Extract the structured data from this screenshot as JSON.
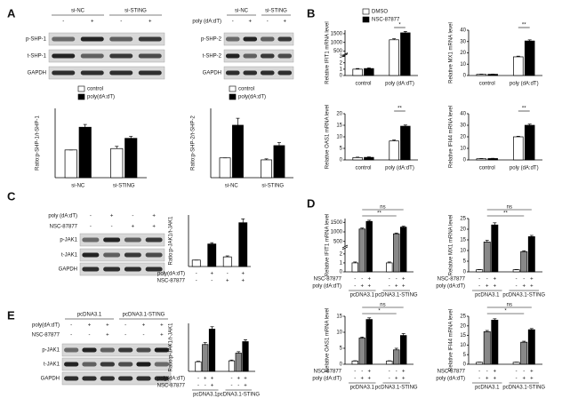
{
  "panels": [
    "A",
    "B",
    "C",
    "D",
    "E"
  ],
  "blots": [
    {
      "groups": [
        "si-NC",
        "si-STING"
      ],
      "conditions": [
        {
          "marks": [
            "-",
            "+",
            "-",
            "+"
          ]
        }
      ],
      "rows": [
        "p-SHP-1",
        "t-SHP-1",
        "GAPDH"
      ]
    },
    {
      "groups": [
        "si-NC",
        "si-STING"
      ],
      "conditions": [
        {
          "label": "poly (dA:dT)",
          "marks": [
            "-",
            "+",
            "-",
            "+"
          ]
        }
      ],
      "rows": [
        "p-SHP-2",
        "t-SHP-2",
        "GAPDH"
      ]
    },
    {
      "conditions": [
        {
          "label": "poly (dA:dT)",
          "marks": [
            "-",
            "+",
            "-",
            "+"
          ]
        },
        {
          "label": "NSC-87877",
          "marks": [
            "-",
            "-",
            "+",
            "+"
          ]
        }
      ],
      "rows": [
        "p-JAK1",
        "t-JAK1",
        "GAPDH"
      ]
    },
    {
      "groups": [
        "pcDNA3.1",
        "pcDNA3.1-STING"
      ],
      "conditions": [
        {
          "label": "poly(dA:dT)",
          "marks": [
            "-",
            "+",
            "+",
            "-",
            "+",
            "+"
          ]
        },
        {
          "label": "NSC-87877",
          "marks": [
            "-",
            "-",
            "+",
            "-",
            "-",
            "+"
          ]
        }
      ],
      "rows": [
        "p-JAK1",
        "t-JAK1",
        "GAPDH"
      ]
    }
  ],
  "chart_data": [
    {
      "type": "bar",
      "ylabel": "Ratio:p-SHP-1/t-SHP-1",
      "categories": [
        "si-NC",
        "si-STING"
      ],
      "ylim": [
        0,
        2.5
      ],
      "series": [
        {
          "name": "control",
          "color": "#ffffff",
          "values": [
            1.0,
            1.05
          ],
          "errors": [
            0,
            0.08
          ]
        },
        {
          "name": "poly(dA:dT)",
          "color": "#000000",
          "values": [
            1.82,
            1.42
          ],
          "errors": [
            0.1,
            0.07
          ]
        }
      ]
    },
    {
      "type": "bar",
      "ylabel": "Ratio:p-SHP-2/t-SHP-2",
      "categories": [
        "si-NC",
        "si-STING"
      ],
      "ylim": [
        0,
        3.5
      ],
      "series": [
        {
          "name": "control",
          "color": "#ffffff",
          "values": [
            1.0,
            0.9
          ],
          "errors": [
            0,
            0.05
          ]
        },
        {
          "name": "poly(dA:dT)",
          "color": "#000000",
          "values": [
            2.65,
            1.62
          ],
          "errors": [
            0.35,
            0.15
          ]
        }
      ]
    },
    {
      "type": "bar",
      "ylabel": "Relative IFIT1 mRNA level",
      "categories": [
        "control",
        "poly (dA:dT)"
      ],
      "ylim": [
        0,
        1700
      ],
      "ybreak": [
        3,
        400
      ],
      "yticks": [
        0,
        1,
        2,
        3,
        500,
        1000,
        1500
      ],
      "annotations": [
        "*"
      ],
      "series": [
        {
          "name": "DMSO",
          "color": "#ffffff",
          "values": [
            1,
            1150
          ],
          "errors": [
            0.1,
            60
          ]
        },
        {
          "name": "NSC-87877",
          "color": "#000000",
          "values": [
            1.1,
            1550
          ],
          "errors": [
            0.1,
            80
          ]
        }
      ]
    },
    {
      "type": "bar",
      "ylabel": "Relative MX1 mRNA level",
      "categories": [
        "control",
        "poly (dA:dT)"
      ],
      "ylim": [
        0,
        40
      ],
      "yticks": [
        0,
        10,
        20,
        30,
        40
      ],
      "annotations": [
        "**"
      ],
      "series": [
        {
          "color": "#ffffff",
          "values": [
            1,
            16.5
          ],
          "errors": [
            0.2,
            0.6
          ]
        },
        {
          "color": "#000000",
          "values": [
            1.1,
            30.5
          ],
          "errors": [
            0.2,
            1
          ]
        }
      ]
    },
    {
      "type": "bar",
      "ylabel": "Relative OAS1 mRNA level",
      "categories": [
        "control",
        "poly (dA:dT)"
      ],
      "ylim": [
        0,
        20
      ],
      "yticks": [
        0,
        5,
        10,
        15,
        20
      ],
      "annotations": [
        "**"
      ],
      "series": [
        {
          "color": "#ffffff",
          "values": [
            1,
            8.2
          ],
          "errors": [
            0.2,
            0.4
          ]
        },
        {
          "color": "#000000",
          "values": [
            1.1,
            14.6
          ],
          "errors": [
            0.2,
            0.5
          ]
        }
      ]
    },
    {
      "type": "bar",
      "ylabel": "Relative IFI44 mRNA level",
      "categories": [
        "control",
        "poly (dA:dT)"
      ],
      "ylim": [
        0,
        40
      ],
      "yticks": [
        0,
        10,
        20,
        30,
        40
      ],
      "annotations": [
        "**"
      ],
      "series": [
        {
          "color": "#ffffff",
          "values": [
            1,
            20
          ],
          "errors": [
            0.2,
            0.5
          ]
        },
        {
          "color": "#000000",
          "values": [
            1.2,
            30
          ],
          "errors": [
            0.2,
            1
          ]
        }
      ]
    },
    {
      "type": "bar",
      "ylabel": "Ratio:p-JAK1/t-JAK1",
      "categories": [
        null,
        null,
        null,
        null
      ],
      "ylim": [
        0,
        8
      ],
      "conditions": [
        {
          "label": "poly(dA:dT)",
          "marks": [
            "-",
            "+",
            "-",
            "+"
          ]
        },
        {
          "label": "NSC-87877",
          "marks": [
            "-",
            "-",
            "+",
            "+"
          ]
        }
      ],
      "series": [
        {
          "colors": [
            "#ffffff",
            "#000000",
            "#ffffff",
            "#000000"
          ],
          "values": [
            1,
            3.5,
            1.5,
            6.8
          ],
          "errors": [
            0,
            0.2,
            0.15,
            0.6
          ]
        }
      ]
    },
    {
      "type": "bar",
      "ylabel": "Relative IFIT1 mRNA level",
      "categories": [
        "pcDNA3.1",
        "pcDNA3.1-STING"
      ],
      "ylim": [
        0,
        1700
      ],
      "ybreak": [
        2.5,
        300
      ],
      "yticks": [
        0,
        1,
        2,
        500,
        1000,
        1500
      ],
      "annotations": [
        "ns",
        "**"
      ],
      "conditions": [
        {
          "label": "NSC-87877",
          "marks": [
            "-",
            "-",
            "+",
            "-",
            "-",
            "+"
          ]
        },
        {
          "label": "poly (dA:dT)",
          "marks": [
            "-",
            "+",
            "+",
            "-",
            "+",
            "+"
          ]
        }
      ],
      "series": [
        {
          "color": "#ffffff",
          "values": [
            1,
            1
          ],
          "errors": [
            0.1,
            0.1
          ]
        },
        {
          "color": "#888888",
          "values": [
            1150,
            900
          ],
          "errors": [
            50,
            40
          ]
        },
        {
          "color": "#000000",
          "values": [
            1550,
            1250
          ],
          "errors": [
            60,
            50
          ]
        }
      ]
    },
    {
      "type": "bar",
      "ylabel": "Relative MX1 mRNA level",
      "categories": [
        "pcDNA3.1",
        "pcDNA3.1-STING"
      ],
      "ylim": [
        0,
        25
      ],
      "yticks": [
        0,
        5,
        10,
        15,
        20,
        25
      ],
      "annotations": [
        "ns",
        "**"
      ],
      "conditions": [
        {
          "label": "NSC-87877",
          "marks": [
            "-",
            "-",
            "+",
            "-",
            "-",
            "+"
          ]
        },
        {
          "label": "poly (dA:dT)",
          "marks": [
            "-",
            "+",
            "+",
            "-",
            "+",
            "+"
          ]
        }
      ],
      "series": [
        {
          "color": "#ffffff",
          "values": [
            1,
            1
          ],
          "errors": [
            0.1,
            0.1
          ]
        },
        {
          "color": "#888888",
          "values": [
            14,
            9.5
          ],
          "errors": [
            0.8,
            0.4
          ]
        },
        {
          "color": "#000000",
          "values": [
            22,
            16.5
          ],
          "errors": [
            1,
            0.6
          ]
        }
      ]
    },
    {
      "type": "bar",
      "ylabel": "Relative OAS1 mRNA level",
      "categories": [
        "pcDNA3.1",
        "pcDNA3.1-STING"
      ],
      "ylim": [
        0,
        15
      ],
      "yticks": [
        0,
        5,
        10,
        15
      ],
      "annotations": [
        "ns",
        "*"
      ],
      "conditions": [
        {
          "label": "NSC-87877",
          "marks": [
            "-",
            "-",
            "+",
            "-",
            "-",
            "+"
          ]
        },
        {
          "label": "poly (dA:dT)",
          "marks": [
            "-",
            "+",
            "+",
            "-",
            "+",
            "+"
          ]
        }
      ],
      "series": [
        {
          "color": "#ffffff",
          "values": [
            1,
            1
          ],
          "errors": [
            0.1,
            0.1
          ]
        },
        {
          "color": "#888888",
          "values": [
            8.2,
            4.5
          ],
          "errors": [
            0.3,
            0.5
          ]
        },
        {
          "color": "#000000",
          "values": [
            14,
            9
          ],
          "errors": [
            0.5,
            0.6
          ]
        }
      ]
    },
    {
      "type": "bar",
      "ylabel": "Relative IFI44 mRNA level",
      "categories": [
        "pcDNA3.1",
        "pcDNA3.1-STING"
      ],
      "ylim": [
        0,
        25
      ],
      "yticks": [
        0,
        5,
        10,
        15,
        20,
        25
      ],
      "annotations": [
        "ns",
        "*"
      ],
      "conditions": [
        {
          "label": "NSC-87877",
          "marks": [
            "-",
            "-",
            "+",
            "-",
            "-",
            "+"
          ]
        },
        {
          "label": "poly (dA:dT)",
          "marks": [
            "-",
            "+",
            "+",
            "-",
            "+",
            "+"
          ]
        }
      ],
      "series": [
        {
          "color": "#ffffff",
          "values": [
            1,
            1
          ],
          "errors": [
            0.1,
            0.1
          ]
        },
        {
          "color": "#888888",
          "values": [
            17,
            11.5
          ],
          "errors": [
            0.6,
            0.5
          ]
        },
        {
          "color": "#000000",
          "values": [
            23,
            18
          ],
          "errors": [
            0.7,
            0.6
          ]
        }
      ]
    },
    {
      "type": "bar",
      "ylabel": "Ratio:p-JAK1/t-JAK1",
      "categories": [
        "pcDNA3.1",
        "pcDNA3.1-STING"
      ],
      "ylim": [
        0,
        5
      ],
      "conditions": [
        {
          "label": "poly(dA:dT)",
          "marks": [
            "-",
            "+",
            "+",
            "-",
            "+",
            "+"
          ]
        },
        {
          "label": "NSC-87877",
          "marks": [
            "-",
            "-",
            "+",
            "-",
            "-",
            "+"
          ]
        }
      ],
      "series": [
        {
          "color": "#ffffff",
          "values": [
            1,
            1.1
          ],
          "errors": [
            0.05,
            0.08
          ]
        },
        {
          "color": "#888888",
          "values": [
            2.8,
            1.9
          ],
          "errors": [
            0.2,
            0.15
          ]
        },
        {
          "color": "#000000",
          "values": [
            4.4,
            3.1
          ],
          "errors": [
            0.25,
            0.2
          ]
        }
      ]
    }
  ]
}
